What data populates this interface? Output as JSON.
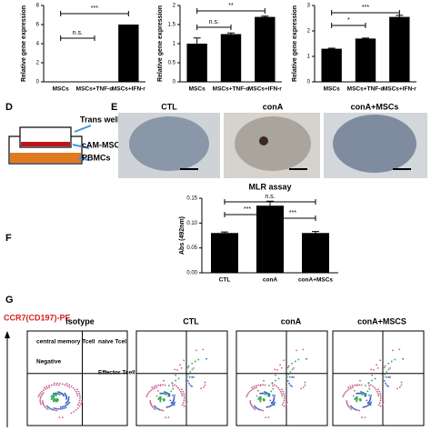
{
  "chart_data": [
    {
      "type": "bar",
      "ylabel": "Relative gene expression",
      "categories": [
        "MSCs",
        "MSCs+TNF-α",
        "MSCs+IFN-r"
      ],
      "values": [
        0.03,
        0.03,
        6
      ],
      "color": "#000000",
      "ylim": [
        0,
        8
      ],
      "yticks": [
        0,
        2,
        4,
        6,
        8
      ],
      "annotations": [
        "n.s.",
        "***"
      ]
    },
    {
      "type": "bar",
      "ylabel": "Relative gene expression",
      "categories": [
        "MSCs",
        "MSCs+TNF-α",
        "MSCs+IFN-r"
      ],
      "values": [
        1.0,
        1.25,
        1.7
      ],
      "errors": [
        0.15,
        0.03,
        0.02
      ],
      "color": "#000000",
      "ylim": [
        0,
        2
      ],
      "yticks": [
        0,
        0.5,
        1,
        1.5,
        2
      ],
      "annotations": [
        "n.s.",
        "**"
      ]
    },
    {
      "type": "bar",
      "ylabel": "Relative gene expression",
      "categories": [
        "MSCs",
        "MSCs+TNF-α",
        "MSCs+IFN-r"
      ],
      "values": [
        1.3,
        1.7,
        2.55
      ],
      "errors": [
        0.02,
        0.02,
        0.06
      ],
      "color": "#000000",
      "ylim": [
        0,
        3
      ],
      "yticks": [
        0,
        1,
        2,
        3
      ],
      "annotations": [
        "*",
        "***"
      ]
    },
    {
      "type": "bar",
      "title": "MLR assay",
      "ylabel": "Abs (492nm)",
      "categories": [
        "CTL",
        "conA",
        "conA+MSCs"
      ],
      "values": [
        0.08,
        0.135,
        0.08
      ],
      "errors": [
        0.002,
        0.009,
        0.003
      ],
      "color": "#000000",
      "ylim": [
        0,
        0.15
      ],
      "yticks": [
        {
          "value": 0,
          "label": "0.00"
        },
        {
          "value": 0.05,
          "label": "0.05"
        },
        {
          "value": 0.1,
          "label": "0.10"
        },
        {
          "value": 0.15,
          "label": "0.15"
        }
      ],
      "annotations": [
        "***",
        "***",
        "n.s."
      ]
    }
  ],
  "panels": [
    "D",
    "E",
    "F",
    "G"
  ],
  "diagram": {
    "labels": [
      "Trans well",
      "cAM-MSCs",
      "PBMCs"
    ]
  },
  "images": {
    "labels": [
      "CTL",
      "conA",
      "conA+MSCs"
    ]
  },
  "flow": {
    "y_axis_label": "CCR7(CD197)-PE",
    "titles": [
      "isotype",
      "CTL",
      "conA",
      "conA+MSCS"
    ],
    "quadrant_labels": [
      "central memory Tcell",
      "naive Tcell",
      "Negative",
      "Effector Tcell"
    ]
  }
}
